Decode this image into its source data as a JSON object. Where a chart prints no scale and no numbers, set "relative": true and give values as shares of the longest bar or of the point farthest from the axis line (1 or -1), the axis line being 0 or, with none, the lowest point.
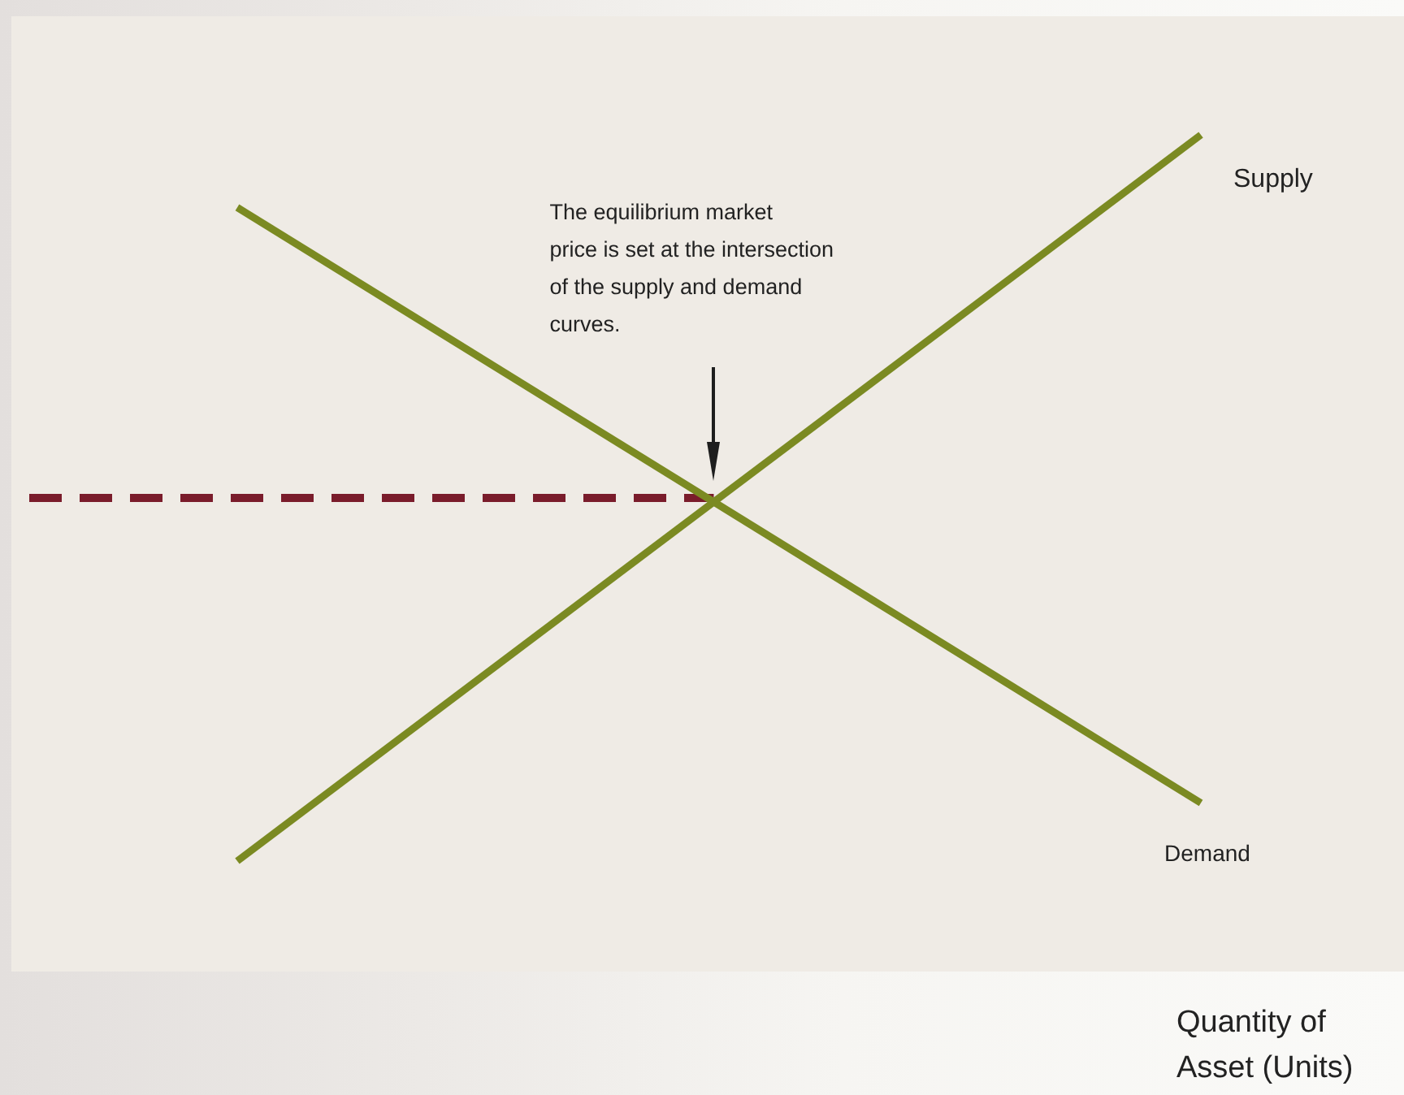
{
  "chart_data": {
    "type": "line",
    "relative": true,
    "xlabel": "Quantity of Asset (Units)",
    "categories": [
      null,
      null
    ],
    "series": [
      {
        "name": "Supply",
        "color": "#7b8a22",
        "values": [
          0,
          1
        ]
      },
      {
        "name": "Demand",
        "color": "#7b8a22",
        "values": [
          0.9,
          0.08
        ]
      }
    ],
    "ref_lines": [
      {
        "axis": "y",
        "value": 0.5,
        "color": "#7a1c2b",
        "line_style": "dashed"
      }
    ],
    "annotations": [
      "The equilibrium market\nprice is set at the intersection\nof the supply and demand\ncurves."
    ],
    "marker": "none"
  }
}
